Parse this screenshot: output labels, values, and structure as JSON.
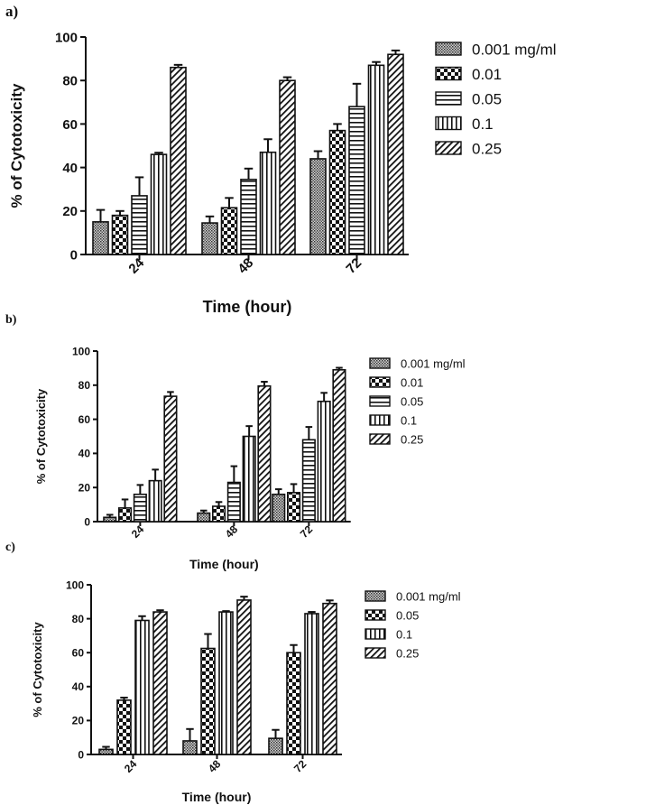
{
  "chart_data": [
    {
      "panel_label": "a)",
      "type": "bar",
      "xlabel": "Time (hour)",
      "ylabel": "% of Cytotoxicity",
      "ylim": [
        0,
        100
      ],
      "yticks": [
        0,
        20,
        40,
        60,
        80,
        100
      ],
      "categories": [
        "24",
        "48",
        "72"
      ],
      "series": [
        {
          "name": "0.001 mg/ml",
          "pattern": "dots",
          "values": [
            15,
            14.5,
            44
          ],
          "errors": [
            5.5,
            3,
            3.5
          ]
        },
        {
          "name": "0.01",
          "pattern": "checker",
          "values": [
            18,
            21.5,
            57
          ],
          "errors": [
            2,
            4.5,
            3
          ]
        },
        {
          "name": "0.05",
          "pattern": "hlines",
          "values": [
            27,
            34.5,
            68
          ],
          "errors": [
            8.5,
            5,
            10.5
          ]
        },
        {
          "name": "0.1",
          "pattern": "vlines",
          "values": [
            46,
            47,
            87
          ],
          "errors": [
            0.8,
            6,
            1.5
          ]
        },
        {
          "name": "0.25",
          "pattern": "diag",
          "values": [
            86,
            80,
            92
          ],
          "errors": [
            1.2,
            1.5,
            1.8
          ]
        }
      ],
      "legend_position": "right"
    },
    {
      "panel_label": "b)",
      "type": "bar",
      "xlabel": "Time (hour)",
      "ylabel": "% of Cytotoxicity",
      "ylim": [
        0,
        100
      ],
      "yticks": [
        0,
        20,
        40,
        60,
        80,
        100
      ],
      "categories": [
        "24",
        "48",
        "72"
      ],
      "series": [
        {
          "name": "0.001 mg/ml",
          "pattern": "dots",
          "values": [
            2.5,
            5,
            16
          ],
          "errors": [
            1.5,
            1.5,
            3
          ]
        },
        {
          "name": "0.01",
          "pattern": "checker",
          "values": [
            8,
            9,
            17
          ],
          "errors": [
            5,
            2.5,
            5
          ]
        },
        {
          "name": "0.05",
          "pattern": "hlines",
          "values": [
            16,
            23,
            48
          ],
          "errors": [
            5.5,
            9.5,
            7.5
          ]
        },
        {
          "name": "0.1",
          "pattern": "vlines",
          "values": [
            24,
            50,
            70.5
          ],
          "errors": [
            6.5,
            6,
            5
          ]
        },
        {
          "name": "0.25",
          "pattern": "diag",
          "values": [
            73.5,
            79.5,
            89
          ],
          "errors": [
            2.5,
            2.5,
            1.2
          ]
        }
      ],
      "legend_position": "right"
    },
    {
      "panel_label": "c)",
      "type": "bar",
      "xlabel": "Time (hour)",
      "ylabel": "% of Cytotoxicity",
      "ylim": [
        0,
        100
      ],
      "yticks": [
        0,
        20,
        40,
        60,
        80,
        100
      ],
      "categories": [
        "24",
        "48",
        "72"
      ],
      "series": [
        {
          "name": "0.001 mg/ml",
          "pattern": "dots",
          "values": [
            3,
            8,
            9.5
          ],
          "errors": [
            1.5,
            7,
            5
          ]
        },
        {
          "name": "0.05",
          "pattern": "checker",
          "values": [
            32,
            62.5,
            60
          ],
          "errors": [
            1.5,
            8.5,
            4.5
          ]
        },
        {
          "name": "0.1",
          "pattern": "vlines",
          "values": [
            79,
            84,
            83
          ],
          "errors": [
            2.5,
            0.5,
            1
          ]
        },
        {
          "name": "0.25",
          "pattern": "diag",
          "values": [
            84,
            91,
            89
          ],
          "errors": [
            1,
            2,
            1.8
          ]
        }
      ],
      "legend_position": "right"
    }
  ]
}
